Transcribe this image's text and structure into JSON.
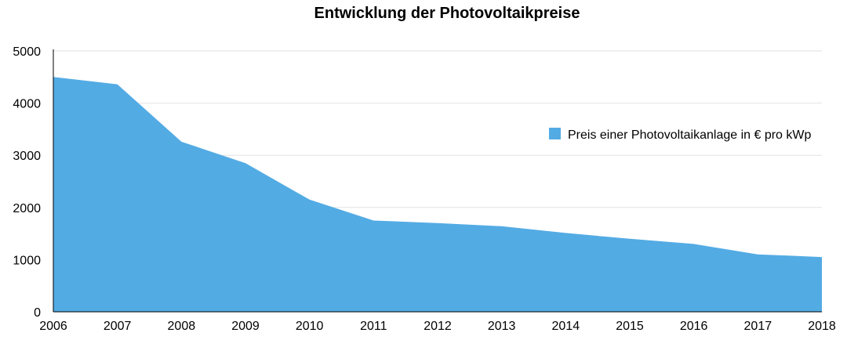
{
  "chart_data": {
    "type": "area",
    "title": "Entwicklung der Photovoltaikpreise",
    "xlabel": "",
    "ylabel": "",
    "x": [
      2006,
      2007,
      2008,
      2009,
      2010,
      2011,
      2012,
      2013,
      2014,
      2015,
      2016,
      2017,
      2018
    ],
    "x_tick_labels": [
      "2006",
      "2007",
      "2008",
      "2009",
      "2010",
      "2011",
      "2012",
      "2013",
      "2014",
      "2015",
      "2016",
      "2017",
      "2018"
    ],
    "series": [
      {
        "name": "Preis einer Photovoltaikanlage in € pro kWp",
        "values": [
          4500,
          4360,
          3260,
          2850,
          2150,
          1750,
          1700,
          1640,
          1510,
          1400,
          1300,
          1100,
          1050
        ],
        "color": "#53ABE4"
      }
    ],
    "ylim": [
      0,
      5000
    ],
    "y_ticks": [
      0,
      1000,
      2000,
      3000,
      4000,
      5000
    ],
    "y_tick_labels": [
      "0",
      "1000",
      "2000",
      "3000",
      "4000",
      "5000"
    ],
    "grid": true,
    "gridline_color": "#e2e2e2",
    "legend_position": "right"
  }
}
